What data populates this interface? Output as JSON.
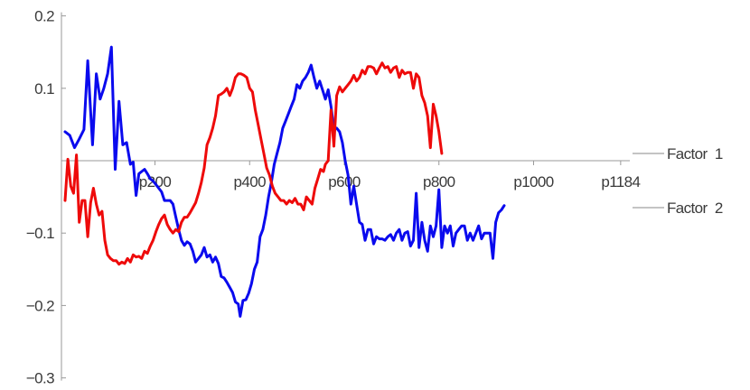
{
  "chart_data": {
    "type": "line",
    "title": "",
    "xlabel": "",
    "ylabel": "",
    "x_tick_labels": [
      {
        "value": 200,
        "label": "p200"
      },
      {
        "value": 400,
        "label": "p400"
      },
      {
        "value": 600,
        "label": "p600"
      },
      {
        "value": 800,
        "label": "p800"
      },
      {
        "value": 1000,
        "label": "p1000"
      },
      {
        "value": 1184,
        "label": "p1184"
      }
    ],
    "xlim": [
      10,
      1190
    ],
    "ylim": [
      -0.3,
      0.2
    ],
    "y_ticks": [
      {
        "value": 0.2,
        "label": "0.2"
      },
      {
        "value": 0.1,
        "label": "0.1"
      },
      {
        "value": -0.1,
        "label": "−0.1"
      },
      {
        "value": -0.2,
        "label": "−0.2"
      },
      {
        "value": -0.3,
        "label": "−0.3"
      }
    ],
    "grid": false,
    "legend": "right",
    "series": [
      {
        "name": "Factor 1",
        "color": "#0a0aee",
        "points": [
          [
            10,
            0.04
          ],
          [
            20,
            0.035
          ],
          [
            30,
            0.018
          ],
          [
            40,
            0.03
          ],
          [
            50,
            0.043
          ],
          [
            58,
            0.138
          ],
          [
            68,
            0.022
          ],
          [
            76,
            0.12
          ],
          [
            84,
            0.085
          ],
          [
            92,
            0.1
          ],
          [
            100,
            0.12
          ],
          [
            108,
            0.157
          ],
          [
            116,
            -0.012
          ],
          [
            124,
            0.082
          ],
          [
            132,
            0.022
          ],
          [
            140,
            0.025
          ],
          [
            148,
            -0.005
          ],
          [
            154,
            -0.002
          ],
          [
            160,
            -0.048
          ],
          [
            166,
            -0.018
          ],
          [
            172,
            -0.015
          ],
          [
            178,
            -0.012
          ],
          [
            184,
            -0.018
          ],
          [
            190,
            -0.025
          ],
          [
            196,
            -0.028
          ],
          [
            202,
            -0.033
          ],
          [
            208,
            -0.038
          ],
          [
            214,
            -0.043
          ],
          [
            220,
            -0.055
          ],
          [
            226,
            -0.055
          ],
          [
            232,
            -0.055
          ],
          [
            238,
            -0.06
          ],
          [
            244,
            -0.078
          ],
          [
            250,
            -0.095
          ],
          [
            256,
            -0.11
          ],
          [
            262,
            -0.117
          ],
          [
            268,
            -0.112
          ],
          [
            274,
            -0.115
          ],
          [
            280,
            -0.125
          ],
          [
            286,
            -0.14
          ],
          [
            292,
            -0.135
          ],
          [
            298,
            -0.13
          ],
          [
            304,
            -0.12
          ],
          [
            310,
            -0.133
          ],
          [
            316,
            -0.13
          ],
          [
            322,
            -0.14
          ],
          [
            328,
            -0.133
          ],
          [
            334,
            -0.142
          ],
          [
            340,
            -0.16
          ],
          [
            346,
            -0.162
          ],
          [
            352,
            -0.168
          ],
          [
            358,
            -0.175
          ],
          [
            364,
            -0.182
          ],
          [
            370,
            -0.195
          ],
          [
            376,
            -0.198
          ],
          [
            380,
            -0.215
          ],
          [
            386,
            -0.193
          ],
          [
            392,
            -0.192
          ],
          [
            398,
            -0.183
          ],
          [
            404,
            -0.17
          ],
          [
            410,
            -0.15
          ],
          [
            416,
            -0.14
          ],
          [
            422,
            -0.105
          ],
          [
            428,
            -0.095
          ],
          [
            434,
            -0.075
          ],
          [
            440,
            -0.05
          ],
          [
            446,
            -0.03
          ],
          [
            452,
            -0.005
          ],
          [
            458,
            0.01
          ],
          [
            464,
            0.025
          ],
          [
            470,
            0.045
          ],
          [
            476,
            0.055
          ],
          [
            482,
            0.065
          ],
          [
            488,
            0.075
          ],
          [
            494,
            0.085
          ],
          [
            500,
            0.105
          ],
          [
            506,
            0.1
          ],
          [
            512,
            0.11
          ],
          [
            518,
            0.115
          ],
          [
            524,
            0.122
          ],
          [
            530,
            0.132
          ],
          [
            536,
            0.115
          ],
          [
            542,
            0.1
          ],
          [
            548,
            0.11
          ],
          [
            554,
            0.098
          ],
          [
            560,
            0.085
          ],
          [
            566,
            0.098
          ],
          [
            572,
            0.075
          ],
          [
            578,
            0.045
          ],
          [
            584,
            0.045
          ],
          [
            590,
            0.04
          ],
          [
            596,
            0.025
          ],
          [
            602,
            0.0
          ],
          [
            608,
            -0.02
          ],
          [
            614,
            -0.06
          ],
          [
            620,
            -0.035
          ],
          [
            626,
            -0.06
          ],
          [
            632,
            -0.085
          ],
          [
            638,
            -0.088
          ],
          [
            644,
            -0.11
          ],
          [
            650,
            -0.095
          ],
          [
            656,
            -0.095
          ],
          [
            662,
            -0.115
          ],
          [
            668,
            -0.105
          ],
          [
            674,
            -0.108
          ],
          [
            680,
            -0.108
          ],
          [
            686,
            -0.11
          ],
          [
            692,
            -0.105
          ],
          [
            698,
            -0.102
          ],
          [
            704,
            -0.11
          ],
          [
            710,
            -0.1
          ],
          [
            716,
            -0.095
          ],
          [
            722,
            -0.11
          ],
          [
            728,
            -0.1
          ],
          [
            734,
            -0.098
          ],
          [
            740,
            -0.118
          ],
          [
            746,
            -0.11
          ],
          [
            752,
            -0.045
          ],
          [
            758,
            -0.12
          ],
          [
            764,
            -0.085
          ],
          [
            770,
            -0.11
          ],
          [
            776,
            -0.125
          ],
          [
            782,
            -0.09
          ],
          [
            788,
            -0.105
          ],
          [
            794,
            -0.09
          ],
          [
            800,
            -0.04
          ],
          [
            806,
            -0.12
          ],
          [
            812,
            -0.09
          ],
          [
            818,
            -0.1
          ],
          [
            824,
            -0.09
          ],
          [
            830,
            -0.118
          ],
          [
            836,
            -0.1
          ],
          [
            842,
            -0.095
          ],
          [
            848,
            -0.09
          ],
          [
            854,
            -0.09
          ],
          [
            860,
            -0.11
          ],
          [
            866,
            -0.1
          ],
          [
            872,
            -0.11
          ],
          [
            878,
            -0.1
          ],
          [
            884,
            -0.09
          ],
          [
            890,
            -0.108
          ],
          [
            896,
            -0.1
          ],
          [
            902,
            -0.1
          ],
          [
            908,
            -0.1
          ],
          [
            914,
            -0.135
          ],
          [
            920,
            -0.085
          ],
          [
            926,
            -0.072
          ],
          [
            932,
            -0.068
          ],
          [
            938,
            -0.062
          ]
        ]
      },
      {
        "name": "Factor 2",
        "color": "#ee0a0a",
        "points": [
          [
            10,
            -0.055
          ],
          [
            16,
            0.002
          ],
          [
            22,
            -0.035
          ],
          [
            28,
            -0.045
          ],
          [
            34,
            0.008
          ],
          [
            40,
            -0.085
          ],
          [
            46,
            -0.055
          ],
          [
            52,
            -0.055
          ],
          [
            58,
            -0.105
          ],
          [
            64,
            -0.058
          ],
          [
            70,
            -0.038
          ],
          [
            76,
            -0.06
          ],
          [
            82,
            -0.075
          ],
          [
            88,
            -0.07
          ],
          [
            94,
            -0.11
          ],
          [
            100,
            -0.13
          ],
          [
            106,
            -0.135
          ],
          [
            112,
            -0.138
          ],
          [
            118,
            -0.138
          ],
          [
            124,
            -0.143
          ],
          [
            130,
            -0.14
          ],
          [
            136,
            -0.142
          ],
          [
            142,
            -0.135
          ],
          [
            148,
            -0.14
          ],
          [
            154,
            -0.13
          ],
          [
            160,
            -0.133
          ],
          [
            166,
            -0.132
          ],
          [
            172,
            -0.135
          ],
          [
            178,
            -0.125
          ],
          [
            184,
            -0.128
          ],
          [
            190,
            -0.118
          ],
          [
            196,
            -0.11
          ],
          [
            202,
            -0.098
          ],
          [
            208,
            -0.088
          ],
          [
            214,
            -0.08
          ],
          [
            220,
            -0.075
          ],
          [
            226,
            -0.088
          ],
          [
            232,
            -0.095
          ],
          [
            238,
            -0.1
          ],
          [
            244,
            -0.095
          ],
          [
            250,
            -0.098
          ],
          [
            256,
            -0.085
          ],
          [
            262,
            -0.078
          ],
          [
            268,
            -0.078
          ],
          [
            274,
            -0.072
          ],
          [
            280,
            -0.065
          ],
          [
            286,
            -0.058
          ],
          [
            292,
            -0.045
          ],
          [
            298,
            -0.03
          ],
          [
            304,
            -0.01
          ],
          [
            310,
            0.022
          ],
          [
            316,
            0.032
          ],
          [
            322,
            0.045
          ],
          [
            328,
            0.062
          ],
          [
            334,
            0.09
          ],
          [
            340,
            0.092
          ],
          [
            346,
            0.095
          ],
          [
            352,
            0.1
          ],
          [
            358,
            0.09
          ],
          [
            364,
            0.1
          ],
          [
            370,
            0.115
          ],
          [
            376,
            0.12
          ],
          [
            382,
            0.12
          ],
          [
            388,
            0.118
          ],
          [
            394,
            0.115
          ],
          [
            400,
            0.1
          ],
          [
            406,
            0.095
          ],
          [
            412,
            0.07
          ],
          [
            418,
            0.05
          ],
          [
            424,
            0.03
          ],
          [
            430,
            0.01
          ],
          [
            436,
            -0.01
          ],
          [
            442,
            -0.02
          ],
          [
            448,
            -0.035
          ],
          [
            454,
            -0.045
          ],
          [
            460,
            -0.05
          ],
          [
            466,
            -0.055
          ],
          [
            472,
            -0.055
          ],
          [
            478,
            -0.06
          ],
          [
            484,
            -0.055
          ],
          [
            490,
            -0.058
          ],
          [
            496,
            -0.052
          ],
          [
            502,
            -0.06
          ],
          [
            508,
            -0.06
          ],
          [
            514,
            -0.068
          ],
          [
            520,
            -0.05
          ],
          [
            526,
            -0.055
          ],
          [
            532,
            -0.06
          ],
          [
            538,
            -0.038
          ],
          [
            544,
            -0.025
          ],
          [
            550,
            -0.012
          ],
          [
            556,
            -0.015
          ],
          [
            560,
            -0.005
          ],
          [
            566,
            0.0
          ],
          [
            572,
            0.07
          ],
          [
            578,
            0.02
          ],
          [
            584,
            0.09
          ],
          [
            590,
            0.102
          ],
          [
            596,
            0.095
          ],
          [
            602,
            0.1
          ],
          [
            608,
            0.105
          ],
          [
            614,
            0.11
          ],
          [
            620,
            0.118
          ],
          [
            626,
            0.11
          ],
          [
            632,
            0.115
          ],
          [
            638,
            0.125
          ],
          [
            644,
            0.12
          ],
          [
            650,
            0.13
          ],
          [
            656,
            0.13
          ],
          [
            662,
            0.128
          ],
          [
            668,
            0.12
          ],
          [
            674,
            0.128
          ],
          [
            680,
            0.135
          ],
          [
            686,
            0.128
          ],
          [
            692,
            0.13
          ],
          [
            698,
            0.122
          ],
          [
            704,
            0.128
          ],
          [
            710,
            0.13
          ],
          [
            716,
            0.115
          ],
          [
            722,
            0.125
          ],
          [
            728,
            0.12
          ],
          [
            734,
            0.122
          ],
          [
            740,
            0.122
          ],
          [
            746,
            0.1
          ],
          [
            752,
            0.12
          ],
          [
            758,
            0.115
          ],
          [
            764,
            0.09
          ],
          [
            770,
            0.08
          ],
          [
            776,
            0.062
          ],
          [
            782,
            0.018
          ],
          [
            788,
            0.078
          ],
          [
            794,
            0.062
          ],
          [
            800,
            0.04
          ],
          [
            806,
            0.01
          ]
        ]
      }
    ]
  }
}
